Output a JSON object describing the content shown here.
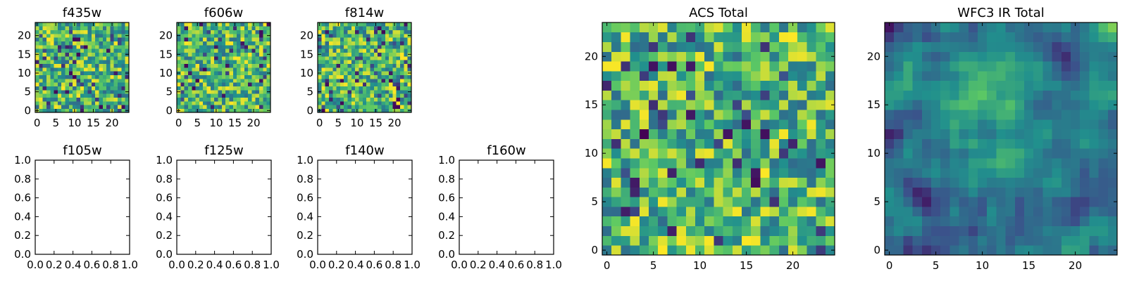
{
  "chart_data": [
    {
      "type": "heatmap",
      "title": "f435w",
      "cols": 25,
      "rows": 24,
      "xticks": [
        0,
        5,
        10,
        15,
        20
      ],
      "yticks": [
        0,
        5,
        10,
        15,
        20
      ],
      "seed": 435,
      "style": "noise"
    },
    {
      "type": "heatmap",
      "title": "f606w",
      "cols": 25,
      "rows": 24,
      "xticks": [
        0,
        5,
        10,
        15,
        20
      ],
      "yticks": [
        0,
        5,
        10,
        15,
        20
      ],
      "seed": 606,
      "style": "noise"
    },
    {
      "type": "heatmap",
      "title": "f814w",
      "cols": 25,
      "rows": 24,
      "xticks": [
        0,
        5,
        10,
        15,
        20
      ],
      "yticks": [
        0,
        5,
        10,
        15,
        20
      ],
      "seed": 814,
      "style": "noise"
    },
    {
      "type": "empty",
      "title": "f105w",
      "xlim": [
        0,
        1
      ],
      "ylim": [
        0,
        1
      ],
      "xticks": [
        "0.0",
        "0.2",
        "0.4",
        "0.6",
        "0.8",
        "1.0"
      ],
      "yticks": [
        "0.0",
        "0.2",
        "0.4",
        "0.6",
        "0.8",
        "1.0"
      ]
    },
    {
      "type": "empty",
      "title": "f125w",
      "xlim": [
        0,
        1
      ],
      "ylim": [
        0,
        1
      ],
      "xticks": [
        "0.0",
        "0.2",
        "0.4",
        "0.6",
        "0.8",
        "1.0"
      ],
      "yticks": [
        "0.0",
        "0.2",
        "0.4",
        "0.6",
        "0.8",
        "1.0"
      ]
    },
    {
      "type": "empty",
      "title": "f140w",
      "xlim": [
        0,
        1
      ],
      "ylim": [
        0,
        1
      ],
      "xticks": [
        "0.0",
        "0.2",
        "0.4",
        "0.6",
        "0.8",
        "1.0"
      ],
      "yticks": [
        "0.0",
        "0.2",
        "0.4",
        "0.6",
        "0.8",
        "1.0"
      ]
    },
    {
      "type": "empty",
      "title": "f160w",
      "xlim": [
        0,
        1
      ],
      "ylim": [
        0,
        1
      ],
      "xticks": [
        "0.0",
        "0.2",
        "0.4",
        "0.6",
        "0.8",
        "1.0"
      ],
      "yticks": [
        "0.0",
        "0.2",
        "0.4",
        "0.6",
        "0.8",
        "1.0"
      ]
    },
    {
      "type": "heatmap",
      "title": "ACS Total",
      "cols": 25,
      "rows": 24,
      "xticks": [
        0,
        5,
        10,
        15,
        20
      ],
      "yticks": [
        0,
        5,
        10,
        15,
        20
      ],
      "seed": 1234,
      "style": "noise"
    },
    {
      "type": "heatmap",
      "title": "WFC3 IR Total",
      "cols": 25,
      "rows": 24,
      "xticks": [
        0,
        5,
        10,
        15,
        20
      ],
      "yticks": [
        0,
        5,
        10,
        15,
        20
      ],
      "seed": 777,
      "style": "smooth"
    }
  ],
  "colormap": [
    "#440154",
    "#3b528b",
    "#21908d",
    "#5dc963",
    "#fde725"
  ]
}
